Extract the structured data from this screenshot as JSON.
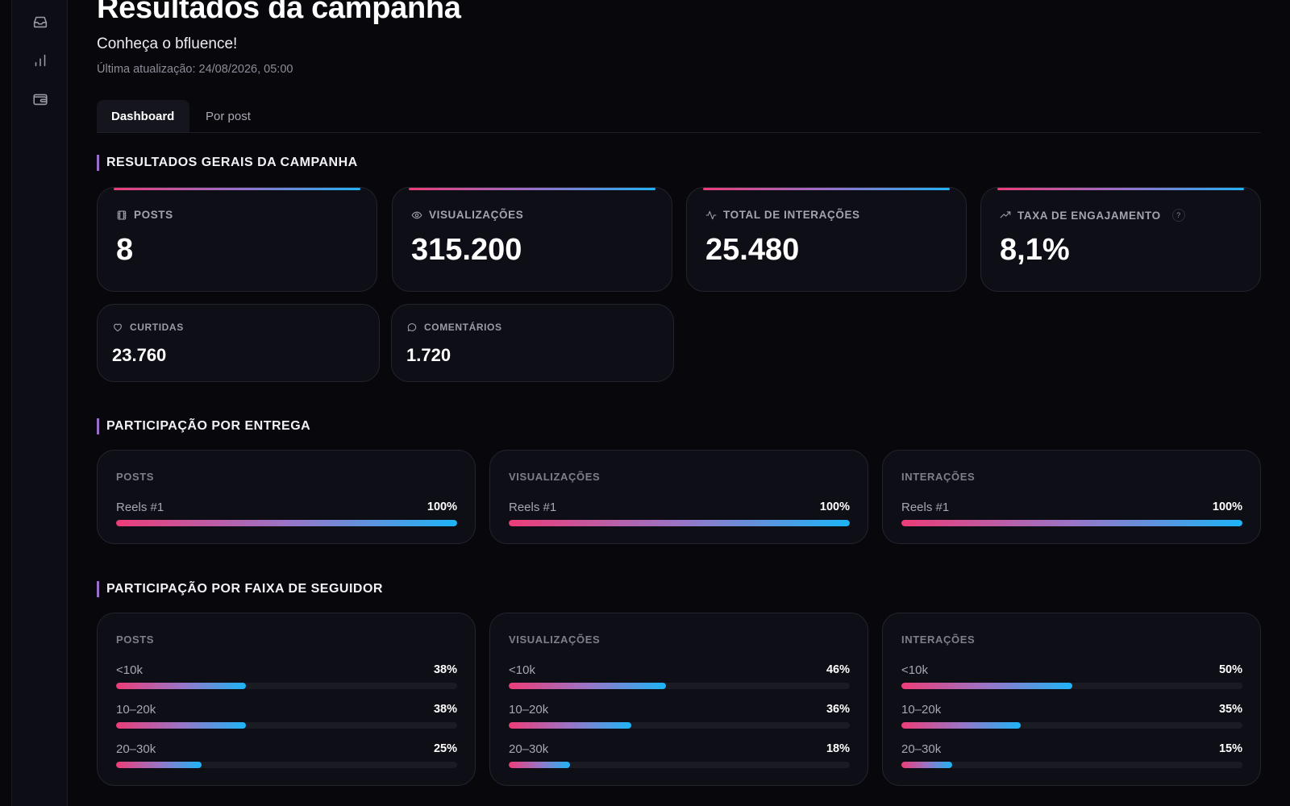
{
  "sidebar": {
    "items": [
      {
        "icon": "inbox-icon"
      },
      {
        "icon": "bar-chart-icon"
      },
      {
        "icon": "wallet-icon"
      }
    ]
  },
  "header": {
    "title": "Resultados da campanha",
    "subtitle": "Conheça o bfluence!",
    "updated": "Última atualização: 24/08/2026, 05:00"
  },
  "tabs": [
    {
      "label": "Dashboard",
      "active": true
    },
    {
      "label": "Por post",
      "active": false
    }
  ],
  "general": {
    "title": "RESULTADOS GERAIS DA CAMPANHA",
    "metrics": [
      {
        "label": "POSTS",
        "value": "8",
        "icon": "film-icon"
      },
      {
        "label": "VISUALIZAÇÕES",
        "value": "315.200",
        "icon": "eye-icon"
      },
      {
        "label": "TOTAL DE INTERAÇÕES",
        "value": "25.480",
        "icon": "activity-icon"
      },
      {
        "label": "TAXA DE ENGAJAMENTO",
        "value": "8,1%",
        "icon": "trending-up-icon",
        "help": "?"
      }
    ],
    "secondary": [
      {
        "label": "CURTIDAS",
        "value": "23.760",
        "icon": "heart-icon"
      },
      {
        "label": "COMENTÁRIOS",
        "value": "1.720",
        "icon": "comment-icon"
      }
    ]
  },
  "delivery": {
    "title": "PARTICIPAÇÃO POR ENTREGA",
    "cards": [
      {
        "title": "POSTS",
        "rows": [
          {
            "label": "Reels #1",
            "pct": "100%",
            "fraction": 1.0
          }
        ]
      },
      {
        "title": "VISUALIZAÇÕES",
        "rows": [
          {
            "label": "Reels #1",
            "pct": "100%",
            "fraction": 1.0
          }
        ]
      },
      {
        "title": "INTERAÇÕES",
        "rows": [
          {
            "label": "Reels #1",
            "pct": "100%",
            "fraction": 1.0
          }
        ]
      }
    ]
  },
  "followers": {
    "title": "PARTICIPAÇÃO POR FAIXA DE SEGUIDOR",
    "cards": [
      {
        "title": "POSTS",
        "rows": [
          {
            "label": "<10k",
            "pct": "38%",
            "fraction": 0.38
          },
          {
            "label": "10–20k",
            "pct": "38%",
            "fraction": 0.38
          },
          {
            "label": "20–30k",
            "pct": "25%",
            "fraction": 0.25
          }
        ]
      },
      {
        "title": "VISUALIZAÇÕES",
        "rows": [
          {
            "label": "<10k",
            "pct": "46%",
            "fraction": 0.46
          },
          {
            "label": "10–20k",
            "pct": "36%",
            "fraction": 0.36
          },
          {
            "label": "20–30k",
            "pct": "18%",
            "fraction": 0.18
          }
        ]
      },
      {
        "title": "INTERAÇÕES",
        "rows": [
          {
            "label": "<10k",
            "pct": "50%",
            "fraction": 0.5
          },
          {
            "label": "10–20k",
            "pct": "35%",
            "fraction": 0.35
          },
          {
            "label": "20–30k",
            "pct": "15%",
            "fraction": 0.15
          }
        ]
      }
    ]
  }
}
